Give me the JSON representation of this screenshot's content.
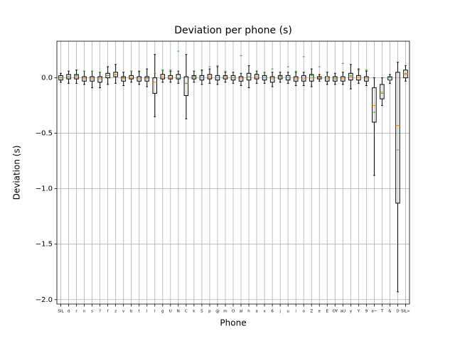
{
  "chart_data": {
    "type": "box",
    "title": "Deviation per phone (s)",
    "x_label": "Phone",
    "y_label": "Deviation (s)",
    "categories": [
      "SIL",
      "d",
      "r",
      "n",
      "s",
      "?",
      "f",
      "z",
      "v",
      "b",
      "t",
      "l",
      "I",
      "g",
      "U",
      "N",
      "C",
      "k",
      "S",
      "p",
      "@",
      "m",
      "O",
      "aI",
      "h",
      "a",
      "x",
      "6",
      "j",
      "u",
      "i",
      "o",
      "Z",
      "e",
      "E",
      "OY",
      "aU",
      "y",
      "Y",
      "9",
      "a~",
      "T",
      "&",
      "D",
      "SIL>"
    ],
    "whisker_low": [
      -0.04,
      -0.05,
      -0.05,
      -0.06,
      -0.09,
      -0.09,
      -0.06,
      -0.05,
      -0.07,
      -0.04,
      -0.06,
      -0.08,
      -0.35,
      -0.04,
      -0.04,
      -0.05,
      -0.37,
      -0.04,
      -0.06,
      -0.05,
      -0.06,
      -0.04,
      -0.05,
      -0.07,
      -0.09,
      -0.05,
      -0.05,
      -0.08,
      -0.04,
      -0.05,
      -0.07,
      -0.07,
      -0.08,
      -0.03,
      -0.06,
      -0.06,
      -0.06,
      -0.1,
      -0.05,
      -0.07,
      -0.88,
      -0.25,
      -0.05,
      -1.93,
      -0.03
    ],
    "q1": [
      -0.02,
      -0.01,
      -0.01,
      -0.03,
      -0.03,
      -0.04,
      0.0,
      0.01,
      -0.03,
      -0.01,
      -0.03,
      -0.03,
      -0.14,
      -0.01,
      -0.01,
      -0.01,
      -0.16,
      -0.01,
      -0.02,
      -0.01,
      -0.02,
      -0.01,
      -0.02,
      -0.03,
      -0.02,
      -0.01,
      -0.02,
      -0.04,
      -0.01,
      -0.02,
      -0.03,
      -0.03,
      -0.03,
      -0.01,
      -0.03,
      -0.03,
      -0.03,
      -0.02,
      -0.02,
      -0.03,
      -0.4,
      -0.19,
      -0.02,
      -1.13,
      0.0
    ],
    "median": [
      0.0,
      0.01,
      0.01,
      -0.01,
      -0.01,
      -0.01,
      0.02,
      0.03,
      -0.01,
      0.0,
      -0.01,
      -0.01,
      -0.04,
      0.01,
      0.0,
      0.0,
      -0.05,
      0.01,
      0.0,
      0.01,
      0.0,
      0.01,
      0.0,
      -0.01,
      0.01,
      0.01,
      0.0,
      -0.01,
      0.01,
      0.0,
      -0.01,
      -0.01,
      0.0,
      0.0,
      -0.01,
      -0.01,
      -0.01,
      0.01,
      0.0,
      -0.01,
      -0.25,
      -0.13,
      0.0,
      -0.43,
      0.03
    ],
    "q3": [
      0.02,
      0.03,
      0.03,
      0.01,
      0.01,
      0.01,
      0.04,
      0.05,
      0.01,
      0.02,
      0.01,
      0.01,
      0.0,
      0.03,
      0.02,
      0.03,
      0.01,
      0.02,
      0.02,
      0.03,
      0.02,
      0.02,
      0.02,
      0.01,
      0.04,
      0.03,
      0.02,
      0.01,
      0.02,
      0.02,
      0.01,
      0.02,
      0.03,
      0.01,
      0.01,
      0.01,
      0.01,
      0.04,
      0.02,
      0.01,
      -0.09,
      -0.06,
      0.01,
      0.05,
      0.07
    ],
    "whisker_high": [
      0.04,
      0.06,
      0.07,
      0.06,
      0.06,
      0.05,
      0.1,
      0.12,
      0.05,
      0.06,
      0.06,
      0.08,
      0.21,
      0.07,
      0.06,
      0.06,
      0.21,
      0.06,
      0.07,
      0.08,
      0.1,
      0.05,
      0.05,
      0.04,
      0.11,
      0.06,
      0.05,
      0.05,
      0.05,
      0.05,
      0.05,
      0.05,
      0.08,
      0.03,
      0.05,
      0.04,
      0.05,
      0.12,
      0.08,
      0.06,
      0.0,
      0.0,
      0.03,
      0.14,
      0.11
    ],
    "mean": [
      0.0,
      0.01,
      0.02,
      0.06,
      0.06,
      0.05,
      0.02,
      0.03,
      0.0,
      0.06,
      0.05,
      0.0,
      0.04,
      0.07,
      0.07,
      0.24,
      -0.05,
      0.01,
      0.06,
      0.1,
      0.11,
      0.06,
      0.0,
      0.2,
      0.01,
      0.04,
      0.05,
      0.08,
      0.01,
      0.1,
      0.06,
      0.19,
      0.02,
      0.1,
      0.01,
      -0.01,
      0.13,
      0.02,
      0.07,
      0.07,
      -0.31,
      -0.14,
      -0.02,
      -0.65,
      0.04
    ],
    "box_color": "#000000",
    "median_color": "#ff7f0e",
    "mean_color": "#2ca02c",
    "ylim": [
      -2.04,
      0.33
    ],
    "yticks": [
      {
        "value": -2.0,
        "label": "−2.0"
      },
      {
        "value": -1.5,
        "label": "−1.5"
      },
      {
        "value": -1.0,
        "label": "−1.0"
      },
      {
        "value": -0.5,
        "label": "−0.5"
      },
      {
        "value": 0.0,
        "label": "0.0"
      }
    ],
    "grid": true
  }
}
